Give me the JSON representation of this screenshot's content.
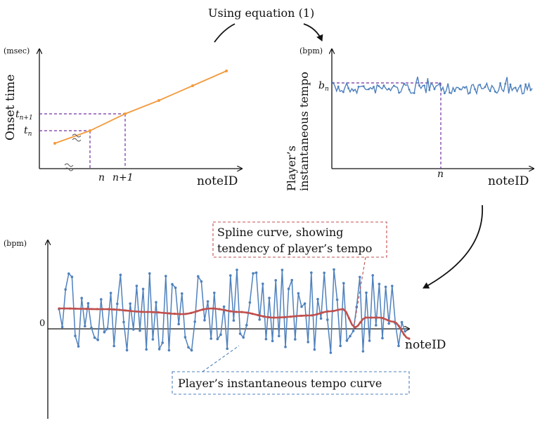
{
  "top_label": "Using equation (1)",
  "panel_onset": {
    "unit": "(msec)",
    "ylabel": "Onset time",
    "xlabel": "noteID",
    "tick_tn1": "t",
    "tick_tn1_sub": "n+1",
    "tick_tn": "t",
    "tick_tn_sub": "n",
    "x_n": "n",
    "x_n1": "n+1"
  },
  "panel_tempo": {
    "unit": "(bpm)",
    "ylabel_line1": "Player’s",
    "ylabel_line2": "instantaneous tempo",
    "tick_bn": "b",
    "tick_bn_sub": "n",
    "x_n": "n",
    "xlabel": "noteID"
  },
  "panel_bottom": {
    "unit": "(bpm)",
    "zero_label": "0",
    "xlabel": "noteID",
    "spline_line1": "Spline curve, showing",
    "spline_line2": "tendency of player’s tempo",
    "inst_label": "Player’s instantaneous tempo curve"
  },
  "colors": {
    "onset_line": "#f39a3d",
    "tempo_line": "#4f81bd",
    "spline": "#c0504d",
    "guide": "#7030a0",
    "spline_box": "#c0504d",
    "inst_box": "#4f81bd"
  }
}
